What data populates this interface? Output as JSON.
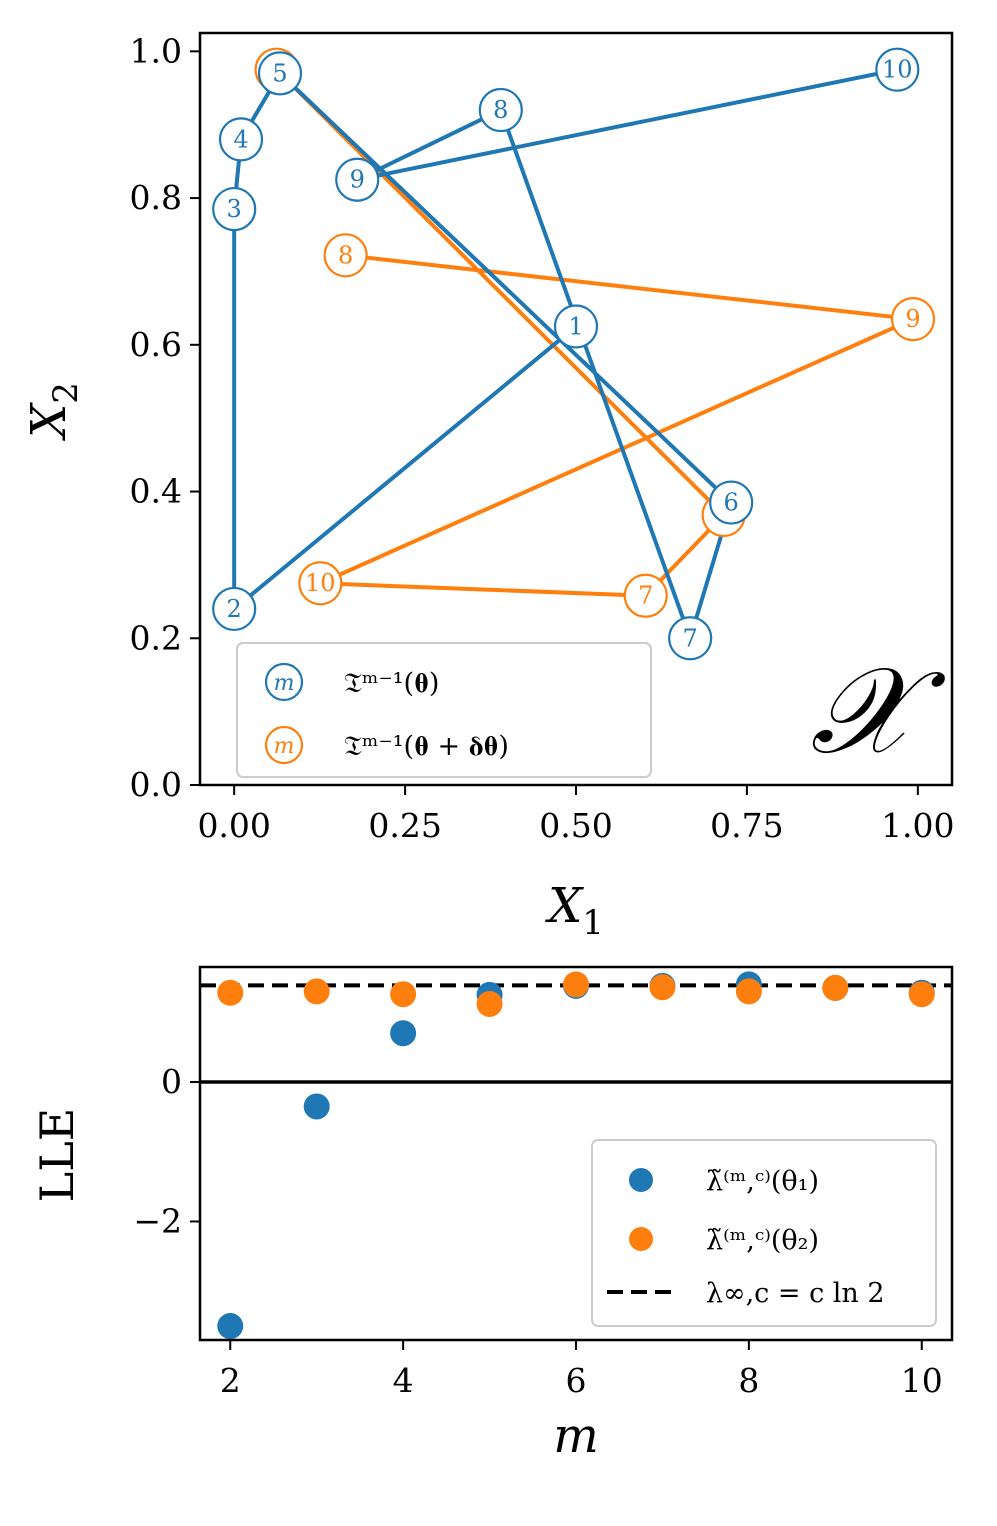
{
  "top_chart": {
    "xlabel": "X",
    "xlabel_sub": "1",
    "ylabel": "X",
    "ylabel_sub": "2",
    "corner_symbol": "𝒳",
    "legend": {
      "marker_label": "m",
      "series1": "𝔗ᵐ⁻¹(𝛉)",
      "series2": "𝔗ᵐ⁻¹(𝛉 + 𝛅𝛉)"
    }
  },
  "bottom_chart": {
    "xlabel": "m",
    "ylabel": "LLE",
    "legend": {
      "series1": "λ̃⁽ᵐ,ᶜ⁾(θ₁)",
      "series2": "λ̃⁽ᵐ,ᶜ⁾(θ₂)",
      "reference": "λ∞,c = c ln 2"
    }
  },
  "chart_data": [
    {
      "type": "line",
      "xlim": [
        -0.05,
        1.05
      ],
      "ylim": [
        0.0,
        1.025
      ],
      "x_ticks": [
        "0.00",
        "0.25",
        "0.50",
        "0.75",
        "1.00"
      ],
      "y_ticks": [
        "0.0",
        "0.2",
        "0.4",
        "0.6",
        "0.8",
        "1.0"
      ],
      "x_tick_values": [
        0.0,
        0.25,
        0.5,
        0.75,
        1.0
      ],
      "y_tick_values": [
        0.0,
        0.2,
        0.4,
        0.6,
        0.8,
        1.0
      ],
      "grid": false,
      "legend_position": "lower-left",
      "series": [
        {
          "color": "#1f77b4",
          "labels": [
            "1",
            "2",
            "3",
            "4",
            "5",
            "6",
            "7",
            "8",
            "9",
            "10"
          ],
          "x": [
            0.5,
            0.0,
            0.0,
            0.01,
            0.067,
            0.727,
            0.667,
            0.39,
            0.18,
            0.97
          ],
          "y": [
            0.625,
            0.24,
            0.785,
            0.88,
            0.97,
            0.385,
            0.2,
            0.92,
            0.825,
            0.975
          ]
        },
        {
          "color": "#ff7f0e",
          "labels": [
            "8",
            "9",
            "10",
            "7"
          ],
          "x": [
            0.163,
            0.993,
            0.126,
            0.602,
            0.716,
            0.062
          ],
          "y": [
            0.722,
            0.635,
            0.275,
            0.258,
            0.368,
            0.975
          ],
          "markers": [
            {
              "label": "8",
              "index": 0
            },
            {
              "label": "9",
              "index": 1
            },
            {
              "label": "10",
              "index": 2
            },
            {
              "label": "7",
              "index": 3
            }
          ]
        }
      ]
    },
    {
      "type": "scatter",
      "xlim": [
        1.65,
        10.35
      ],
      "ylim": [
        -3.7,
        1.65
      ],
      "x_ticks": [
        "2",
        "4",
        "6",
        "8",
        "10"
      ],
      "y_ticks": [
        "0",
        "−2"
      ],
      "x_tick_values": [
        2,
        4,
        6,
        8,
        10
      ],
      "y_tick_values": [
        0,
        -2
      ],
      "grid": false,
      "legend_position": "lower-right",
      "reference_line": 1.386,
      "series": [
        {
          "color": "#1f77b4",
          "x": [
            2,
            3,
            4,
            5,
            6,
            7,
            8,
            9,
            10
          ],
          "y": [
            -3.5,
            -0.35,
            0.7,
            1.25,
            1.38,
            1.38,
            1.4,
            1.35,
            1.28
          ]
        },
        {
          "color": "#ff7f0e",
          "x": [
            2,
            3,
            4,
            5,
            6,
            7,
            8,
            9,
            10
          ],
          "y": [
            1.28,
            1.3,
            1.26,
            1.12,
            1.4,
            1.36,
            1.3,
            1.35,
            1.26
          ]
        }
      ]
    }
  ]
}
